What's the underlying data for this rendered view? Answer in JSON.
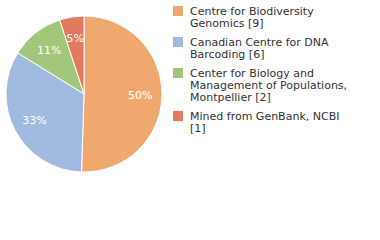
{
  "chart_data": {
    "type": "pie",
    "categories": [
      "Centre for Biodiversity Genomics [9]",
      "Canadian Centre for DNA Barcoding [6]",
      "Center for Biology and Management of Populations, Montpellier [2]",
      "Mined from GenBank, NCBI [1]"
    ],
    "values": [
      50,
      33,
      11,
      5
    ],
    "value_labels": [
      "50%",
      "33%",
      "11%",
      "5%"
    ],
    "colors": [
      "#efa96f",
      "#a1bae0",
      "#a2c77a",
      "#e07b5f"
    ],
    "data_labels": true,
    "legend": "right"
  }
}
